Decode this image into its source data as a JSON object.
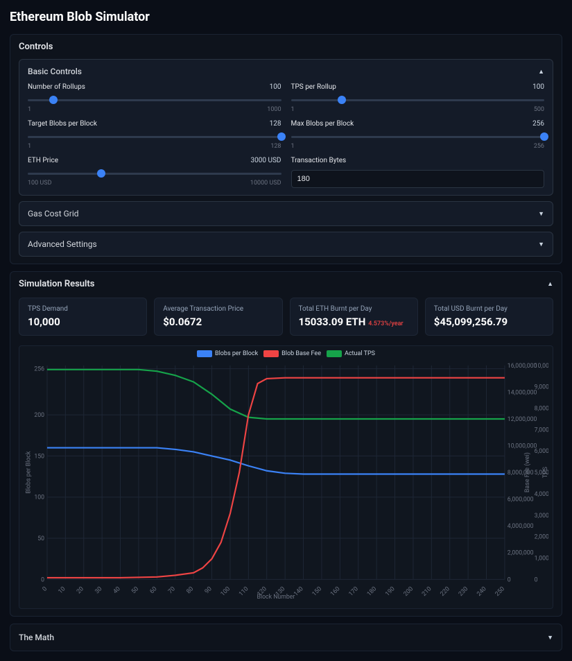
{
  "title": "Ethereum Blob Simulator",
  "controls": {
    "title": "Controls",
    "basic": {
      "title": "Basic Controls",
      "expanded": true,
      "items": [
        {
          "label": "Number of Rollups",
          "value": "100",
          "min": "1",
          "max": "1000",
          "pct": 10
        },
        {
          "label": "TPS per Rollup",
          "value": "100",
          "min": "1",
          "max": "500",
          "pct": 20
        },
        {
          "label": "Target Blobs per Block",
          "value": "128",
          "min": "1",
          "max": "128",
          "pct": 100
        },
        {
          "label": "Max Blobs per Block",
          "value": "256",
          "min": "1",
          "max": "256",
          "pct": 100
        },
        {
          "label": "ETH Price",
          "value": "3000 USD",
          "min": "100 USD",
          "max": "10000 USD",
          "pct": 29
        }
      ],
      "tx_bytes_label": "Transaction Bytes",
      "tx_bytes_value": "180"
    },
    "gas_grid": {
      "title": "Gas Cost Grid",
      "expanded": false
    },
    "advanced": {
      "title": "Advanced Settings",
      "expanded": false
    }
  },
  "results": {
    "title": "Simulation Results",
    "expanded": true,
    "stats": [
      {
        "label": "TPS Demand",
        "value": "10,000",
        "note": ""
      },
      {
        "label": "Average Transaction Price",
        "value": "$0.0672",
        "note": ""
      },
      {
        "label": "Total ETH Burnt per Day",
        "value": "15033.09 ETH",
        "note": "4.573%/year"
      },
      {
        "label": "Total USD Burnt per Day",
        "value": "$45,099,256.79",
        "note": ""
      }
    ],
    "chart": {
      "legend": [
        {
          "label": "Blobs per Block",
          "color": "#3b82f6"
        },
        {
          "label": "Blob Base Fee",
          "color": "#ef4444"
        },
        {
          "label": "Actual TPS",
          "color": "#16a34a"
        }
      ],
      "left_axis_label": "Blobs per Block",
      "right_axis1_label": "Base Fee (wei)",
      "right_axis2_label": "TPS",
      "x_axis_label": "Block Number",
      "left_ticks": [
        "256",
        "200",
        "150",
        "100",
        "50",
        "0"
      ],
      "right1_ticks": [
        "16,000,000",
        "14,000,000",
        "12,000,000",
        "10,000,000",
        "8,000,000",
        "6,000,000",
        "4,000,000",
        "2,000,000",
        "0"
      ],
      "right2_ticks": [
        "10,000",
        "9,000",
        "8,000",
        "7,000",
        "6,000",
        "5,000",
        "4,000",
        "3,000",
        "2,000",
        "1,000",
        "0"
      ],
      "x_ticks": [
        "0",
        "10",
        "20",
        "30",
        "40",
        "50",
        "60",
        "70",
        "80",
        "90",
        "100",
        "110",
        "120",
        "130",
        "140",
        "150",
        "160",
        "170",
        "180",
        "190",
        "200",
        "210",
        "220",
        "230",
        "240",
        "250"
      ],
      "y_domain": [
        0,
        260
      ],
      "x_domain": [
        0,
        250
      ],
      "series": {
        "blobs": [
          [
            0,
            160
          ],
          [
            50,
            160
          ],
          [
            60,
            160
          ],
          [
            70,
            158
          ],
          [
            80,
            155
          ],
          [
            90,
            150
          ],
          [
            100,
            145
          ],
          [
            110,
            138
          ],
          [
            120,
            132
          ],
          [
            130,
            129
          ],
          [
            140,
            128
          ],
          [
            150,
            128
          ],
          [
            250,
            128
          ]
        ],
        "fee_scaled": [
          [
            0,
            2
          ],
          [
            40,
            2
          ],
          [
            60,
            3
          ],
          [
            70,
            5
          ],
          [
            80,
            8
          ],
          [
            85,
            14
          ],
          [
            90,
            25
          ],
          [
            95,
            45
          ],
          [
            100,
            80
          ],
          [
            105,
            130
          ],
          [
            110,
            200
          ],
          [
            115,
            238
          ],
          [
            120,
            244
          ],
          [
            130,
            245
          ],
          [
            250,
            245
          ]
        ],
        "tps_scaled": [
          [
            0,
            255
          ],
          [
            50,
            255
          ],
          [
            60,
            253
          ],
          [
            70,
            248
          ],
          [
            80,
            240
          ],
          [
            90,
            225
          ],
          [
            100,
            207
          ],
          [
            110,
            197
          ],
          [
            120,
            195
          ],
          [
            130,
            195
          ],
          [
            250,
            195
          ]
        ]
      }
    }
  },
  "math": {
    "title": "The Math",
    "expanded": false
  },
  "colors": {
    "bg": "#0a0e17",
    "panel": "#0e131c",
    "subpanel": "#141b28",
    "border": "#2a3442",
    "grid": "#1e2736",
    "muted": "#6b7280",
    "text": "#e5e7eb",
    "accent": "#3b82f6",
    "red": "#ef4444",
    "green": "#16a34a"
  }
}
